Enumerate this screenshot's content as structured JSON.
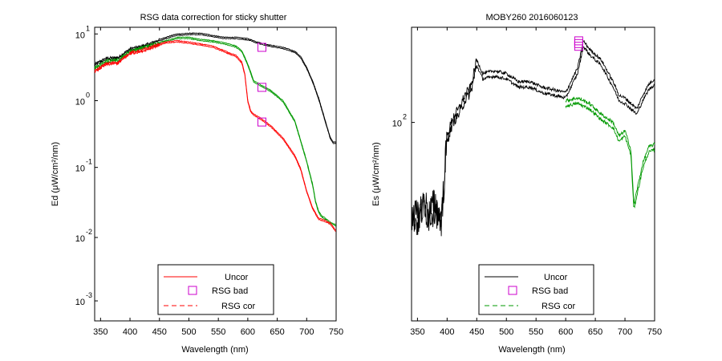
{
  "chart_data": [
    {
      "type": "line",
      "title": "RSG data correction for sticky shutter",
      "xlabel": "Wavelength (nm)",
      "ylabel": "Ed (μW/cm²/nm)",
      "xlim": [
        340,
        750
      ],
      "ylim_log10": [
        -3.2,
        1.2
      ],
      "yscale": "log",
      "xticks": [
        "350",
        "400",
        "450",
        "500",
        "550",
        "600",
        "650",
        "700",
        "750"
      ],
      "yticks": [
        {
          "base": "10",
          "exp": "1"
        },
        {
          "base": "10",
          "exp": "0"
        },
        {
          "base": "10",
          "exp": "-1"
        },
        {
          "base": "10",
          "exp": "-2"
        },
        {
          "base": "10",
          "exp": "-3"
        }
      ],
      "grid": false,
      "legend_placement": "bottom-center",
      "legend": [
        {
          "label": "Uncor",
          "color": "#ff0000",
          "style": "solid"
        },
        {
          "label": "RSG bad",
          "color": "#cc00cc",
          "style": "marker-square"
        },
        {
          "label": "RSG cor",
          "color": "#ff0000",
          "style": "dashed"
        }
      ],
      "series": [
        {
          "color": "#000000",
          "x": [
            340,
            360,
            380,
            400,
            420,
            440,
            460,
            480,
            500,
            520,
            540,
            560,
            580,
            600,
            620,
            640,
            660,
            680,
            690,
            700,
            710,
            720,
            730,
            740,
            745,
            750
          ],
          "log10y": [
            0.65,
            0.74,
            0.75,
            0.88,
            0.92,
            0.98,
            1.05,
            1.1,
            1.11,
            1.11,
            1.08,
            1.05,
            1.05,
            1.03,
            0.97,
            0.93,
            0.9,
            0.84,
            0.76,
            0.6,
            0.4,
            0.15,
            -0.15,
            -0.45,
            -0.52,
            -0.52
          ]
        },
        {
          "color": "#009900",
          "x": [
            340,
            360,
            380,
            400,
            420,
            440,
            460,
            480,
            500,
            520,
            540,
            560,
            580,
            590,
            600,
            610,
            620,
            640,
            660,
            680,
            690,
            700,
            710,
            715,
            720,
            725,
            730,
            740,
            750
          ],
          "log10y": [
            0.6,
            0.7,
            0.72,
            0.85,
            0.9,
            0.95,
            1.0,
            1.05,
            1.05,
            1.02,
            1.0,
            0.97,
            0.92,
            0.85,
            0.65,
            0.4,
            0.35,
            0.25,
            0.1,
            -0.2,
            -0.5,
            -0.8,
            -1.15,
            -1.4,
            -1.55,
            -1.62,
            -1.65,
            -1.72,
            -1.76
          ]
        },
        {
          "color": "#ff0000",
          "x": [
            340,
            360,
            380,
            400,
            420,
            440,
            460,
            480,
            500,
            520,
            540,
            560,
            580,
            590,
            595,
            600,
            605,
            610,
            620,
            640,
            660,
            680,
            690,
            700,
            710,
            720,
            730,
            740,
            750
          ],
          "log10y": [
            0.55,
            0.66,
            0.68,
            0.82,
            0.86,
            0.92,
            0.98,
            1.0,
            0.98,
            0.95,
            0.92,
            0.85,
            0.78,
            0.68,
            0.5,
            0.1,
            -0.05,
            -0.1,
            -0.15,
            -0.28,
            -0.46,
            -0.72,
            -0.92,
            -1.25,
            -1.5,
            -1.66,
            -1.69,
            -1.73,
            -1.85
          ]
        }
      ],
      "markers": {
        "label": "RSG bad",
        "color": "#cc00cc",
        "x": [
          624,
          624,
          624
        ],
        "log10y": [
          0.9,
          0.3,
          -0.22
        ]
      }
    },
    {
      "type": "line",
      "title": "MOBY260  2016060123",
      "xlabel": "Wavelength (nm)",
      "ylabel": "Es (μW/cm²/nm)",
      "xlim": [
        340,
        750
      ],
      "yscale": "log",
      "xticks": [
        "350",
        "400",
        "450",
        "500",
        "550",
        "600",
        "650",
        "700",
        "750"
      ],
      "yticks": [
        {
          "base": "10",
          "exp": "2"
        }
      ],
      "grid": false,
      "legend_placement": "bottom-center",
      "legend": [
        {
          "label": "Uncor",
          "color": "#000000",
          "style": "solid"
        },
        {
          "label": "RSG bad",
          "color": "#cc00cc",
          "style": "marker-square"
        },
        {
          "label": "RSG cor",
          "color": "#009900",
          "style": "dashed"
        }
      ],
      "series": [
        {
          "color": "#000000",
          "x": [
            340,
            350,
            360,
            370,
            380,
            390,
            400,
            410,
            420,
            430,
            440,
            450,
            460,
            480,
            500,
            520,
            540,
            560,
            580,
            600,
            620,
            630,
            640,
            660,
            680,
            690,
            700,
            710,
            720,
            730,
            740,
            750
          ],
          "log10y": [
            1.83,
            1.8,
            1.86,
            1.82,
            1.86,
            1.78,
            2.1,
            2.17,
            2.2,
            2.25,
            2.28,
            2.38,
            2.33,
            2.34,
            2.33,
            2.3,
            2.3,
            2.28,
            2.27,
            2.26,
            2.35,
            2.45,
            2.42,
            2.38,
            2.3,
            2.25,
            2.24,
            2.22,
            2.2,
            2.25,
            2.29,
            2.31
          ]
        },
        {
          "color": "#009900",
          "x": [
            600,
            620,
            640,
            660,
            680,
            690,
            700,
            710,
            715,
            720,
            730,
            740,
            750
          ],
          "log10y": [
            2.23,
            2.24,
            2.22,
            2.18,
            2.15,
            2.1,
            2.12,
            2.05,
            1.85,
            1.9,
            2.0,
            2.06,
            2.07
          ]
        }
      ],
      "markers": {
        "label": "RSG bad",
        "color": "#cc00cc",
        "x": [
          622,
          622,
          622
        ],
        "log10y": [
          2.45,
          2.44,
          2.43
        ]
      }
    }
  ]
}
